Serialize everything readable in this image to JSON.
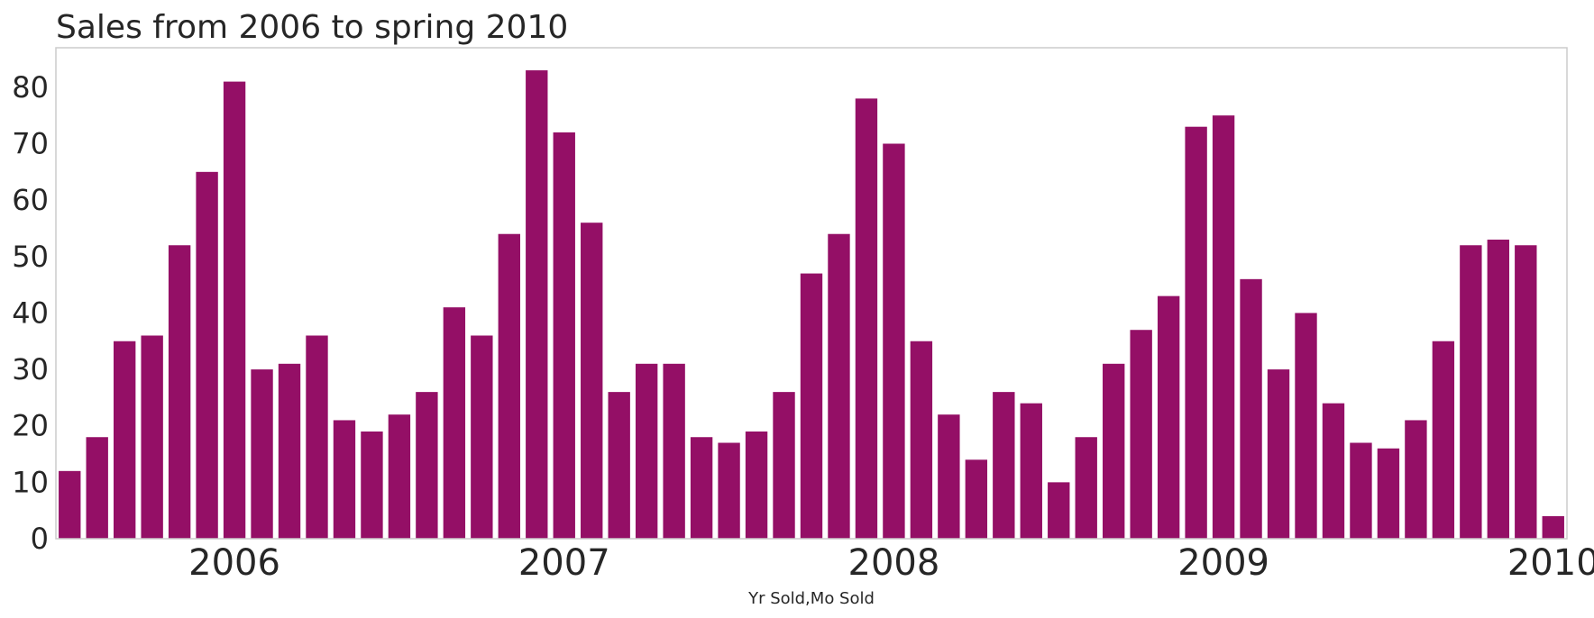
{
  "chart_data": {
    "type": "bar",
    "title": "Sales from 2006 to spring 2010",
    "xlabel": "Yr Sold,Mo Sold",
    "ylabel": "",
    "ylim": [
      0,
      87
    ],
    "yticks": [
      0,
      10,
      20,
      30,
      40,
      50,
      60,
      70,
      80
    ],
    "grid": false,
    "bar_color": "#940f66",
    "xtick_labels": [
      {
        "label": "2006",
        "position": 6.5
      },
      {
        "label": "2007",
        "position": 18.5
      },
      {
        "label": "2008",
        "position": 30.5
      },
      {
        "label": "2009",
        "position": 42.5
      },
      {
        "label": "2010",
        "position": 54.5
      }
    ],
    "values": [
      12,
      18,
      35,
      36,
      52,
      65,
      81,
      30,
      31,
      36,
      21,
      19,
      22,
      26,
      41,
      36,
      54,
      83,
      72,
      56,
      26,
      31,
      31,
      18,
      17,
      19,
      26,
      47,
      54,
      78,
      70,
      35,
      22,
      14,
      26,
      24,
      10,
      18,
      31,
      37,
      43,
      73,
      75,
      46,
      30,
      40,
      24,
      17,
      16,
      21,
      35,
      52,
      53,
      52,
      4
    ]
  }
}
